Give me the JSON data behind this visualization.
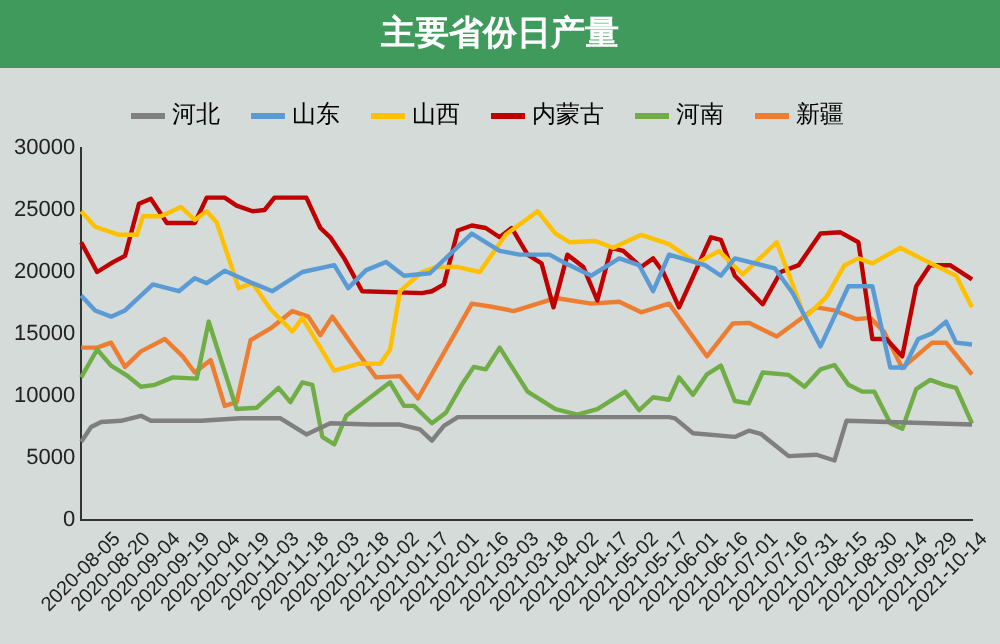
{
  "chart_data": {
    "type": "line",
    "title": "主要省份日产量",
    "legend": "top",
    "marker": "none",
    "grid": false,
    "line_style": "solid",
    "xlim": [
      "2020-08-05",
      "2021-10-26"
    ],
    "xticks": [
      "2020-08-05",
      "2020-08-20",
      "2020-09-04",
      "2020-09-19",
      "2020-10-04",
      "2020-10-19",
      "2020-11-03",
      "2020-11-18",
      "2020-12-03",
      "2020-12-18",
      "2021-01-02",
      "2021-01-17",
      "2021-02-01",
      "2021-02-16",
      "2021-03-03",
      "2021-03-18",
      "2021-04-02",
      "2021-04-17",
      "2021-05-02",
      "2021-05-17",
      "2021-06-01",
      "2021-06-16",
      "2021-07-01",
      "2021-07-16",
      "2021-07-31",
      "2021-08-15",
      "2021-08-30",
      "2021-09-14",
      "2021-09-29",
      "2021-10-14"
    ],
    "ylim": [
      0,
      30000
    ],
    "yticks": [
      0,
      5000,
      10000,
      15000,
      20000,
      25000,
      30000
    ],
    "series": [
      {
        "name": "河北",
        "color": "#7f7f7f",
        "x": [
          "2020-08-05",
          "2020-08-10",
          "2020-08-15",
          "2020-08-25",
          "2020-09-04",
          "2020-09-09",
          "2020-10-04",
          "2020-10-24",
          "2020-11-13",
          "2020-11-26",
          "2020-12-08",
          "2020-12-28",
          "2021-01-12",
          "2021-01-22",
          "2021-01-28",
          "2021-02-03",
          "2021-02-10",
          "2021-05-27",
          "2021-05-30",
          "2021-06-08",
          "2021-06-29",
          "2021-07-06",
          "2021-07-12",
          "2021-07-26",
          "2021-08-09",
          "2021-08-18",
          "2021-08-24",
          "2021-10-26"
        ],
        "values": [
          6300,
          7500,
          7900,
          8000,
          8400,
          8000,
          8000,
          8200,
          8200,
          6900,
          7800,
          7700,
          7700,
          7300,
          6400,
          7600,
          8300,
          8300,
          8200,
          7000,
          6700,
          7200,
          6950,
          5150,
          5260,
          4800,
          8000,
          7700
        ]
      },
      {
        "name": "山东",
        "color": "#5b9bd5",
        "x": [
          "2020-08-05",
          "2020-08-12",
          "2020-08-20",
          "2020-08-27",
          "2020-09-10",
          "2020-09-23",
          "2020-10-01",
          "2020-10-07",
          "2020-10-16",
          "2020-10-30",
          "2020-11-09",
          "2020-11-24",
          "2020-12-10",
          "2020-12-17",
          "2020-12-26",
          "2021-01-05",
          "2021-01-14",
          "2021-01-27",
          "2021-02-17",
          "2021-03-03",
          "2021-03-13",
          "2021-03-28",
          "2021-04-05",
          "2021-04-18",
          "2021-05-02",
          "2021-05-12",
          "2021-05-19",
          "2021-05-27",
          "2021-06-14",
          "2021-06-22",
          "2021-06-29",
          "2021-07-19",
          "2021-07-28",
          "2021-08-11",
          "2021-08-25",
          "2021-09-06",
          "2021-09-15",
          "2021-09-22",
          "2021-09-29",
          "2021-10-06",
          "2021-10-13",
          "2021-10-18",
          "2021-10-26"
        ],
        "values": [
          18100,
          16900,
          16400,
          16900,
          19000,
          18450,
          19500,
          19100,
          20100,
          19100,
          18450,
          20000,
          20550,
          18700,
          20150,
          20800,
          19700,
          19900,
          23100,
          21700,
          21400,
          21400,
          20700,
          19700,
          21100,
          20550,
          18450,
          21400,
          20550,
          19700,
          21100,
          20300,
          18300,
          14000,
          18850,
          18850,
          12300,
          12300,
          14600,
          15050,
          16000,
          14300,
          14150
        ]
      },
      {
        "name": "山西",
        "color": "#ffc000",
        "x": [
          "2020-08-05",
          "2020-08-12",
          "2020-08-24",
          "2020-09-02",
          "2020-09-05",
          "2020-09-14",
          "2020-09-24",
          "2020-10-01",
          "2020-10-07",
          "2020-10-12",
          "2020-10-23",
          "2020-10-30",
          "2020-11-08",
          "2020-11-19",
          "2020-11-24",
          "2020-12-10",
          "2020-12-22",
          "2021-01-02",
          "2021-01-07",
          "2021-01-12",
          "2021-01-23",
          "2021-01-30",
          "2021-02-10",
          "2021-02-21",
          "2021-03-06",
          "2021-03-22",
          "2021-03-31",
          "2021-04-07",
          "2021-04-20",
          "2021-04-29",
          "2021-05-13",
          "2021-05-27",
          "2021-06-10",
          "2021-06-21",
          "2021-07-03",
          "2021-07-20",
          "2021-07-31",
          "2021-08-03",
          "2021-08-14",
          "2021-08-23",
          "2021-08-30",
          "2021-09-06",
          "2021-09-20",
          "2021-10-04",
          "2021-10-18",
          "2021-10-26"
        ],
        "values": [
          24900,
          23650,
          23000,
          23000,
          24500,
          24500,
          25250,
          24200,
          24900,
          24000,
          18700,
          19100,
          17000,
          15200,
          16300,
          12050,
          12600,
          12600,
          13750,
          18450,
          20000,
          20400,
          20400,
          20000,
          23000,
          24900,
          23100,
          22400,
          22500,
          21950,
          23000,
          22250,
          20700,
          21700,
          19800,
          22400,
          17700,
          16300,
          18000,
          20550,
          21100,
          20700,
          21950,
          20800,
          19700,
          17150
        ]
      },
      {
        "name": "内蒙古",
        "color": "#c00000",
        "x": [
          "2020-08-05",
          "2020-08-13",
          "2020-08-21",
          "2020-08-27",
          "2020-09-03",
          "2020-09-09",
          "2020-09-17",
          "2020-10-01",
          "2020-10-07",
          "2020-10-16",
          "2020-10-22",
          "2020-10-30",
          "2020-11-05",
          "2020-11-10",
          "2020-11-26",
          "2020-12-03",
          "2020-12-08",
          "2020-12-15",
          "2020-12-24",
          "2021-01-23",
          "2021-01-28",
          "2021-02-03",
          "2021-02-10",
          "2021-02-17",
          "2021-02-24",
          "2021-03-03",
          "2021-03-09",
          "2021-03-17",
          "2021-03-24",
          "2021-03-30",
          "2021-04-06",
          "2021-04-14",
          "2021-04-21",
          "2021-04-28",
          "2021-05-04",
          "2021-05-13",
          "2021-05-19",
          "2021-05-24",
          "2021-06-01",
          "2021-06-17",
          "2021-06-22",
          "2021-06-29",
          "2021-07-13",
          "2021-07-22",
          "2021-07-31",
          "2021-08-11",
          "2021-08-21",
          "2021-08-30",
          "2021-09-06",
          "2021-09-13",
          "2021-09-21",
          "2021-09-28",
          "2021-10-05",
          "2021-10-15",
          "2021-10-26"
        ],
        "values": [
          22400,
          20000,
          20800,
          21300,
          25500,
          25900,
          23950,
          23950,
          26000,
          26000,
          25350,
          24900,
          25000,
          26000,
          26000,
          23550,
          22800,
          21100,
          18450,
          18300,
          18450,
          19000,
          23350,
          23750,
          23550,
          22800,
          23550,
          21400,
          20700,
          17150,
          21400,
          20400,
          17700,
          21950,
          21700,
          20400,
          21100,
          20000,
          17150,
          22800,
          22600,
          19700,
          17400,
          20000,
          20550,
          23100,
          23200,
          22400,
          14600,
          14600,
          13200,
          18850,
          20550,
          20550,
          19400
        ]
      },
      {
        "name": "河南",
        "color": "#70ad47",
        "x": [
          "2020-08-05",
          "2020-08-13",
          "2020-08-20",
          "2020-08-28",
          "2020-09-04",
          "2020-09-11",
          "2020-09-20",
          "2020-10-02",
          "2020-10-08",
          "2020-10-22",
          "2020-11-01",
          "2020-11-12",
          "2020-11-18",
          "2020-11-24",
          "2020-11-29",
          "2020-12-04",
          "2020-12-10",
          "2020-12-16",
          "2021-01-07",
          "2021-01-14",
          "2021-01-19",
          "2021-01-28",
          "2021-02-04",
          "2021-02-12",
          "2021-02-18",
          "2021-02-24",
          "2021-03-03",
          "2021-03-17",
          "2021-03-31",
          "2021-04-11",
          "2021-04-21",
          "2021-05-05",
          "2021-05-12",
          "2021-05-19",
          "2021-05-27",
          "2021-06-01",
          "2021-06-08",
          "2021-06-15",
          "2021-06-22",
          "2021-06-29",
          "2021-07-06",
          "2021-07-13",
          "2021-07-26",
          "2021-08-03",
          "2021-08-11",
          "2021-08-18",
          "2021-08-25",
          "2021-09-01",
          "2021-09-07",
          "2021-09-15",
          "2021-09-21",
          "2021-09-28",
          "2021-10-05",
          "2021-10-12",
          "2021-10-18",
          "2021-10-26"
        ],
        "values": [
          11500,
          13750,
          12450,
          11650,
          10750,
          10900,
          11500,
          11400,
          16000,
          8950,
          9050,
          10650,
          9500,
          11100,
          10900,
          6700,
          6100,
          8400,
          11100,
          9200,
          9200,
          7800,
          8650,
          10900,
          12350,
          12150,
          13900,
          10350,
          8950,
          8500,
          8950,
          10350,
          8850,
          9900,
          9700,
          11500,
          10100,
          11750,
          12450,
          9600,
          9400,
          11900,
          11700,
          10750,
          12150,
          12500,
          10900,
          10350,
          10350,
          7800,
          7350,
          10550,
          11300,
          10900,
          10650,
          7800
        ]
      },
      {
        "name": "新疆",
        "color": "#ed7d31",
        "x": [
          "2020-08-05",
          "2020-08-13",
          "2020-08-20",
          "2020-08-27",
          "2020-09-04",
          "2020-09-16",
          "2020-09-25",
          "2020-10-01",
          "2020-10-09",
          "2020-10-16",
          "2020-10-22",
          "2020-10-29",
          "2020-11-08",
          "2020-11-19",
          "2020-11-27",
          "2020-12-03",
          "2020-12-09",
          "2020-12-22",
          "2020-12-31",
          "2021-01-12",
          "2021-01-21",
          "2021-02-17",
          "2021-02-27",
          "2021-03-10",
          "2021-03-31",
          "2021-04-18",
          "2021-05-02",
          "2021-05-13",
          "2021-05-27",
          "2021-06-15",
          "2021-06-28",
          "2021-07-06",
          "2021-07-20",
          "2021-08-09",
          "2021-08-18",
          "2021-08-29",
          "2021-09-05",
          "2021-09-12",
          "2021-09-21",
          "2021-10-06",
          "2021-10-13",
          "2021-10-26"
        ],
        "values": [
          13900,
          13900,
          14300,
          12350,
          13600,
          14600,
          13200,
          11900,
          12900,
          9200,
          9500,
          14500,
          15450,
          16850,
          16400,
          14900,
          16400,
          13450,
          11500,
          11600,
          9800,
          17450,
          17200,
          16850,
          17900,
          17450,
          17600,
          16750,
          17450,
          13200,
          15850,
          15900,
          14800,
          17150,
          16900,
          16200,
          16300,
          15150,
          12250,
          14300,
          14300,
          11750
        ]
      }
    ]
  }
}
